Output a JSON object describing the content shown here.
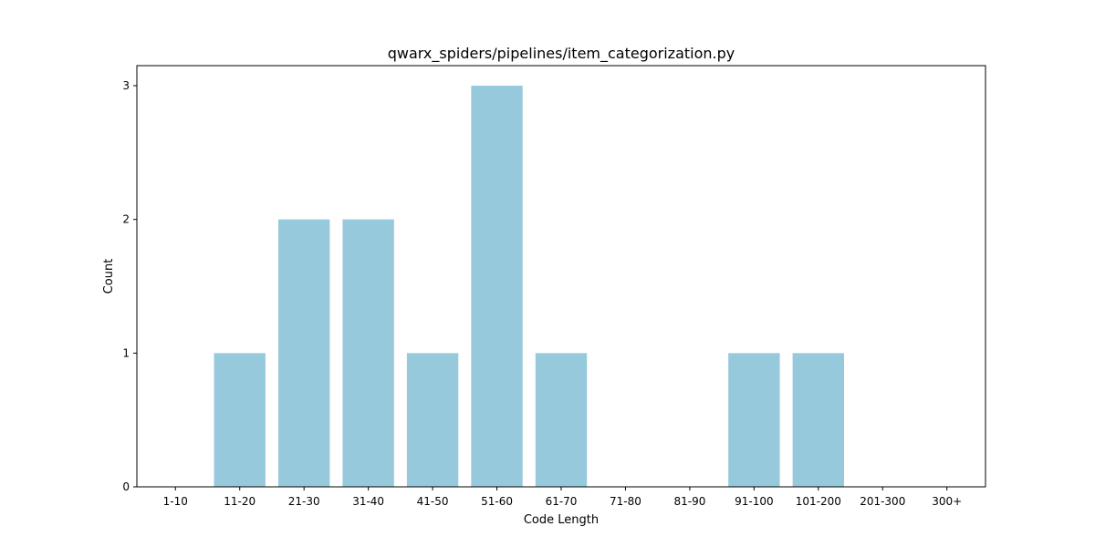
{
  "chart_data": {
    "type": "bar",
    "title": "qwarx_spiders/pipelines/item_categorization.py",
    "xlabel": "Code Length",
    "ylabel": "Count",
    "categories": [
      "1-10",
      "11-20",
      "21-30",
      "31-40",
      "41-50",
      "51-60",
      "61-70",
      "71-80",
      "81-90",
      "91-100",
      "101-200",
      "201-300",
      "300+"
    ],
    "values": [
      0,
      1,
      2,
      2,
      1,
      3,
      1,
      0,
      0,
      1,
      1,
      0,
      0
    ],
    "ylim": [
      0,
      3.15
    ],
    "yticks": [
      0,
      1,
      2,
      3
    ],
    "bar_color": "#96c9dc",
    "grid": false,
    "legend": "none"
  }
}
